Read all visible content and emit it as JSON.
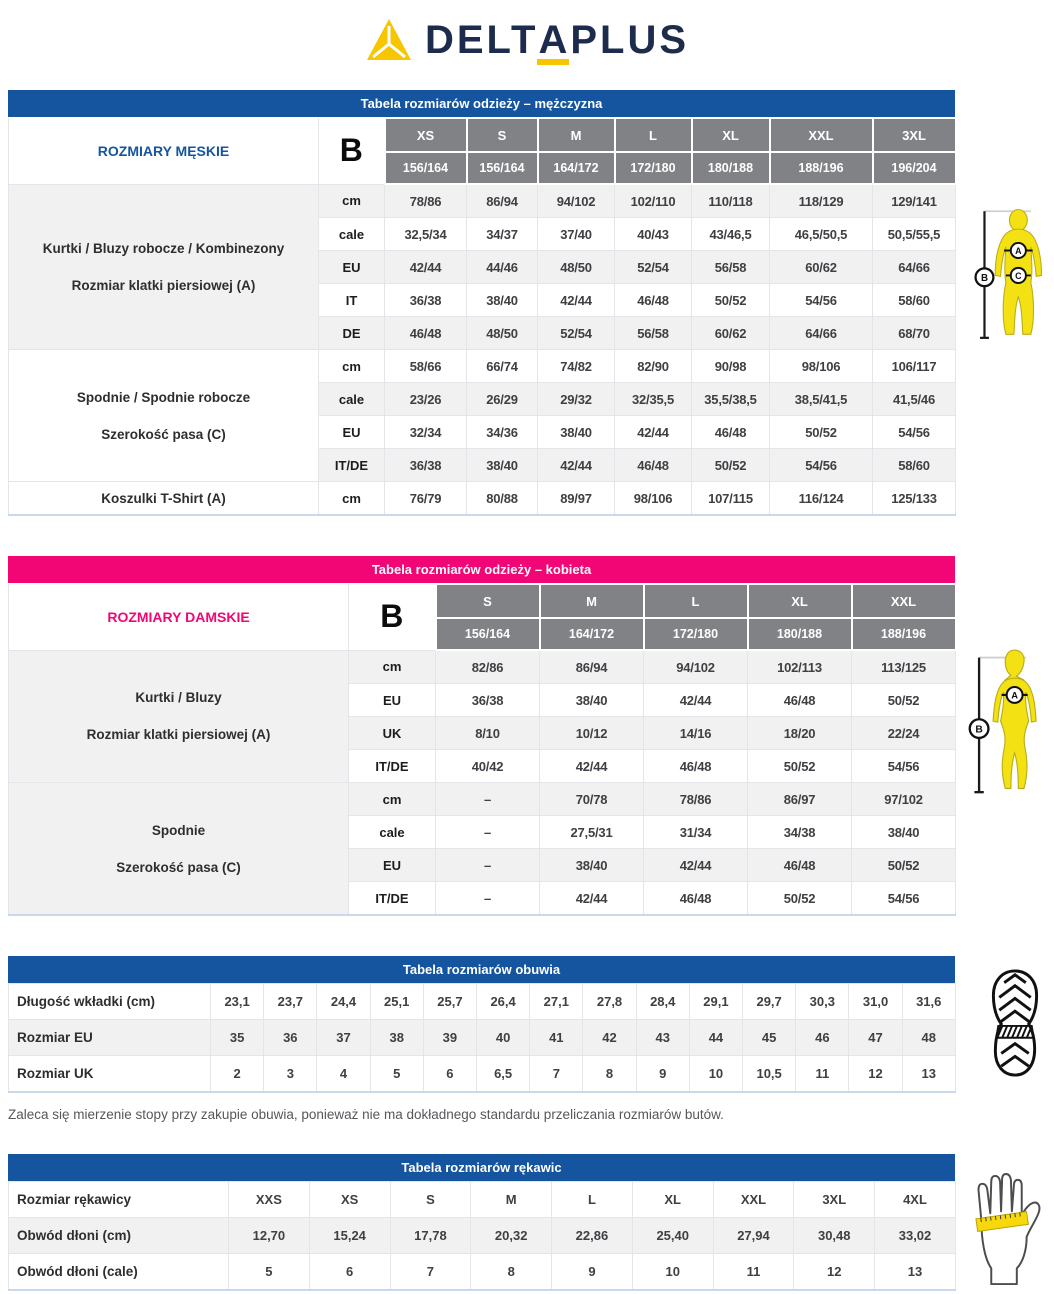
{
  "logo": {
    "part1": "DELT",
    "part2": "A",
    "part3": "PLUS"
  },
  "colors": {
    "brand_navy": "#1d2b4c",
    "brand_yellow": "#f7c600",
    "table_blue": "#15549f",
    "table_pink": "#f20574",
    "header_gray": "#808285"
  },
  "men_table": {
    "title": "Tabela rozmiarów odzieży – mężczyzna",
    "corner_label": "ROZMIARY MĘSKIE",
    "b_label": "B",
    "sizes": [
      "XS",
      "S",
      "M",
      "L",
      "XL",
      "XXL",
      "3XL"
    ],
    "heights": [
      "156/164",
      "156/164",
      "164/172",
      "172/180",
      "180/188",
      "188/196",
      "196/204"
    ],
    "sections": [
      {
        "label_lines": [
          "Kurtki / Bluzy robocze / Kombinezony",
          "Rozmiar klatki piersiowej (A)"
        ],
        "rows": [
          {
            "unit": "cm",
            "values": [
              "78/86",
              "86/94",
              "94/102",
              "102/110",
              "110/118",
              "118/129",
              "129/141"
            ]
          },
          {
            "unit": "cale",
            "values": [
              "32,5/34",
              "34/37",
              "37/40",
              "40/43",
              "43/46,5",
              "46,5/50,5",
              "50,5/55,5"
            ]
          },
          {
            "unit": "EU",
            "values": [
              "42/44",
              "44/46",
              "48/50",
              "52/54",
              "56/58",
              "60/62",
              "64/66"
            ]
          },
          {
            "unit": "IT",
            "values": [
              "36/38",
              "38/40",
              "42/44",
              "46/48",
              "50/52",
              "54/56",
              "58/60"
            ]
          },
          {
            "unit": "DE",
            "values": [
              "46/48",
              "48/50",
              "52/54",
              "56/58",
              "60/62",
              "64/66",
              "68/70"
            ]
          }
        ]
      },
      {
        "label_lines": [
          "Spodnie / Spodnie robocze",
          "Szerokość pasa (C)"
        ],
        "rows": [
          {
            "unit": "cm",
            "values": [
              "58/66",
              "66/74",
              "74/82",
              "82/90",
              "90/98",
              "98/106",
              "106/117"
            ]
          },
          {
            "unit": "cale",
            "values": [
              "23/26",
              "26/29",
              "29/32",
              "32/35,5",
              "35,5/38,5",
              "38,5/41,5",
              "41,5/46"
            ]
          },
          {
            "unit": "EU",
            "values": [
              "32/34",
              "34/36",
              "38/40",
              "42/44",
              "46/48",
              "50/52",
              "54/56"
            ]
          },
          {
            "unit": "IT/DE",
            "values": [
              "36/38",
              "38/40",
              "42/44",
              "46/48",
              "50/52",
              "54/56",
              "58/60"
            ]
          }
        ]
      },
      {
        "label_lines": [
          "Koszulki T-Shirt (A)"
        ],
        "rows": [
          {
            "unit": "cm",
            "values": [
              "76/79",
              "80/88",
              "89/97",
              "98/106",
              "107/115",
              "116/124",
              "125/133"
            ]
          }
        ]
      }
    ]
  },
  "women_table": {
    "title": "Tabela rozmiarów odzieży – kobieta",
    "corner_label": "ROZMIARY DAMSKIE",
    "b_label": "B",
    "sizes": [
      "S",
      "M",
      "L",
      "XL",
      "XXL"
    ],
    "heights": [
      "156/164",
      "164/172",
      "172/180",
      "180/188",
      "188/196"
    ],
    "sections": [
      {
        "label_lines": [
          "Kurtki / Bluzy",
          "Rozmiar klatki piersiowej (A)"
        ],
        "rows": [
          {
            "unit": "cm",
            "values": [
              "82/86",
              "86/94",
              "94/102",
              "102/113",
              "113/125"
            ]
          },
          {
            "unit": "EU",
            "values": [
              "36/38",
              "38/40",
              "42/44",
              "46/48",
              "50/52"
            ]
          },
          {
            "unit": "UK",
            "values": [
              "8/10",
              "10/12",
              "14/16",
              "18/20",
              "22/24"
            ]
          },
          {
            "unit": "IT/DE",
            "values": [
              "40/42",
              "42/44",
              "46/48",
              "50/52",
              "54/56"
            ]
          }
        ]
      },
      {
        "label_lines": [
          "Spodnie",
          "Szerokość pasa (C)"
        ],
        "rows": [
          {
            "unit": "cm",
            "values": [
              "–",
              "70/78",
              "78/86",
              "86/97",
              "97/102"
            ]
          },
          {
            "unit": "cale",
            "values": [
              "–",
              "27,5/31",
              "31/34",
              "34/38",
              "38/40"
            ]
          },
          {
            "unit": "EU",
            "values": [
              "–",
              "38/40",
              "42/44",
              "46/48",
              "50/52"
            ]
          },
          {
            "unit": "IT/DE",
            "values": [
              "–",
              "42/44",
              "46/48",
              "50/52",
              "54/56"
            ]
          }
        ]
      }
    ]
  },
  "shoe_table": {
    "title": "Tabela rozmiarów obuwia",
    "rows": [
      {
        "label": "Długość wkładki (cm)",
        "values": [
          "23,1",
          "23,7",
          "24,4",
          "25,1",
          "25,7",
          "26,4",
          "27,1",
          "27,8",
          "28,4",
          "29,1",
          "29,7",
          "30,3",
          "31,0",
          "31,6"
        ]
      },
      {
        "label": "Rozmiar EU",
        "values": [
          "35",
          "36",
          "37",
          "38",
          "39",
          "40",
          "41",
          "42",
          "43",
          "44",
          "45",
          "46",
          "47",
          "48"
        ]
      },
      {
        "label": "Rozmiar UK",
        "values": [
          "2",
          "3",
          "4",
          "5",
          "6",
          "6,5",
          "7",
          "8",
          "9",
          "10",
          "10,5",
          "11",
          "12",
          "13"
        ]
      }
    ]
  },
  "shoe_note": "Zaleca się mierzenie stopy przy zakupie obuwia, ponieważ nie ma dokładnego standardu przeliczania rozmiarów butów.",
  "glove_table": {
    "title": "Tabela rozmiarów rękawic",
    "rows": [
      {
        "label": "Rozmiar rękawicy",
        "values": [
          "XXS",
          "XS",
          "S",
          "M",
          "L",
          "XL",
          "XXL",
          "3XL",
          "4XL"
        ]
      },
      {
        "label": "Obwód dłoni (cm)",
        "values": [
          "12,70",
          "15,24",
          "17,78",
          "20,32",
          "22,86",
          "25,40",
          "27,94",
          "30,48",
          "33,02"
        ]
      },
      {
        "label": "Obwód dłoni (cale)",
        "values": [
          "5",
          "6",
          "7",
          "8",
          "9",
          "10",
          "11",
          "12",
          "13"
        ]
      }
    ]
  },
  "figures": {
    "male": {
      "a": "A",
      "b": "B",
      "c": "C"
    },
    "female": {
      "a": "A",
      "b": "B"
    }
  }
}
